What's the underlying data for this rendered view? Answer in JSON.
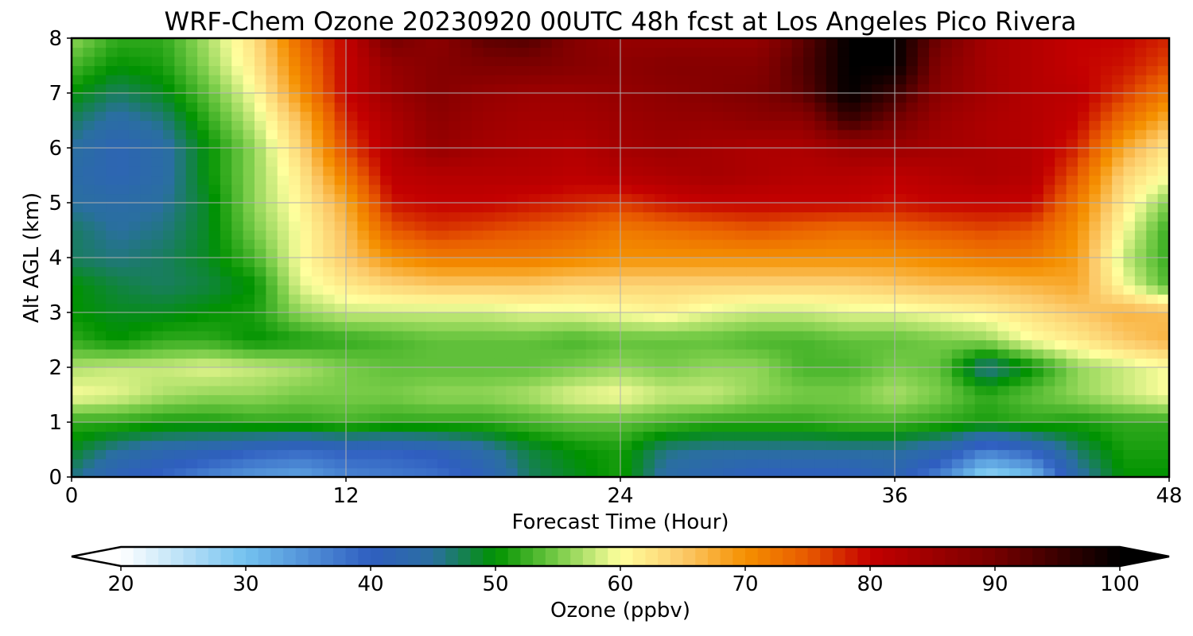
{
  "chart_data": {
    "type": "heatmap",
    "title": "WRF-Chem Ozone  20230920 00UTC 48h fcst at Los Angeles Pico Rivera",
    "xlabel": "Forecast Time (Hour)",
    "ylabel": "Alt AGL (km)",
    "xlim": [
      0,
      48
    ],
    "ylim": [
      0,
      8
    ],
    "x_ticks": [
      0,
      12,
      24,
      36,
      48
    ],
    "y_ticks": [
      0,
      1,
      2,
      3,
      4,
      5,
      6,
      7,
      8
    ],
    "grid": true,
    "x": [
      0,
      2,
      4,
      6,
      8,
      10,
      12,
      14,
      16,
      18,
      20,
      22,
      24,
      26,
      28,
      30,
      32,
      34,
      36,
      38,
      40,
      42,
      44,
      46,
      48
    ],
    "y": [
      0,
      0.5,
      1,
      1.5,
      2,
      2.5,
      3,
      3.5,
      4,
      4.5,
      5,
      5.5,
      6,
      6.5,
      7,
      7.5,
      8
    ],
    "z": [
      [
        46,
        41,
        39,
        36,
        34,
        33,
        36,
        37,
        38,
        41,
        47,
        49,
        51,
        44,
        42,
        40,
        40,
        40,
        42,
        36,
        27,
        30,
        44,
        50,
        50
      ],
      [
        49,
        45,
        43,
        42,
        40,
        39,
        40,
        40,
        41,
        44,
        48,
        50,
        51,
        46,
        45,
        45,
        45,
        45,
        45,
        43,
        37,
        40,
        47,
        51,
        51
      ],
      [
        52,
        52,
        51,
        51,
        52,
        52,
        53,
        52,
        52,
        52,
        53,
        54,
        54,
        53,
        52,
        52,
        52,
        53,
        53,
        52,
        51,
        52,
        51,
        52,
        52
      ],
      [
        60,
        59,
        57,
        56,
        56,
        55,
        55,
        55,
        56,
        56,
        57,
        59,
        60,
        58,
        58,
        56,
        55,
        55,
        57,
        55,
        52,
        54,
        56,
        58,
        60
      ],
      [
        57,
        58,
        58,
        59,
        58,
        57,
        55,
        54,
        54,
        54,
        54,
        55,
        56,
        55,
        56,
        56,
        53,
        53,
        55,
        54,
        45,
        50,
        56,
        58,
        60
      ],
      [
        52,
        50,
        52,
        52,
        50,
        51,
        52,
        53,
        54,
        54,
        54,
        53,
        54,
        54,
        54,
        53,
        53,
        54,
        54,
        55,
        56,
        60,
        62,
        65,
        67
      ],
      [
        50,
        49,
        49,
        50,
        51,
        56,
        58,
        58,
        58,
        58,
        59,
        59,
        60,
        61,
        59,
        58,
        58,
        59,
        59,
        60,
        61,
        63,
        65,
        67,
        66
      ],
      [
        50,
        48,
        47,
        48,
        50,
        59,
        62,
        64,
        65,
        65,
        65,
        64,
        64,
        64,
        64,
        64,
        64,
        64,
        65,
        66,
        66,
        67,
        68,
        60,
        53
      ],
      [
        47,
        46,
        47,
        49,
        53,
        60,
        65,
        70,
        72,
        72,
        72,
        71,
        70,
        70,
        70,
        70,
        70,
        70,
        70,
        71,
        72,
        72,
        69,
        58,
        52
      ],
      [
        47,
        45,
        46,
        49,
        55,
        60,
        66,
        75,
        77,
        76,
        75,
        74,
        72,
        73,
        74,
        75,
        74,
        73,
        74,
        75,
        76,
        75,
        70,
        60,
        52
      ],
      [
        45,
        44,
        45,
        49,
        56,
        61,
        68,
        79,
        80,
        80,
        79,
        78,
        77,
        79,
        80,
        80,
        80,
        80,
        79,
        80,
        80,
        80,
        72,
        62,
        55
      ],
      [
        44,
        42,
        44,
        50,
        56,
        62,
        72,
        81,
        82,
        82,
        82,
        81,
        82,
        83,
        84,
        83,
        82,
        82,
        81,
        82,
        83,
        82,
        75,
        64,
        60
      ],
      [
        45,
        42,
        44,
        50,
        56,
        64,
        76,
        82,
        86,
        84,
        83,
        82,
        84,
        85,
        84,
        83,
        83,
        85,
        85,
        84,
        83,
        82,
        78,
        68,
        62
      ],
      [
        47,
        44,
        46,
        52,
        58,
        66,
        78,
        83,
        87,
        85,
        84,
        84,
        85,
        86,
        86,
        87,
        87,
        95,
        90,
        85,
        83,
        82,
        80,
        73,
        67
      ],
      [
        50,
        47,
        49,
        54,
        60,
        70,
        80,
        85,
        88,
        86,
        85,
        85,
        86,
        87,
        88,
        89,
        92,
        100,
        95,
        87,
        84,
        82,
        81,
        77,
        72
      ],
      [
        53,
        50,
        51,
        56,
        62,
        72,
        80,
        86,
        88,
        89,
        89,
        88,
        87,
        88,
        88,
        88,
        93,
        100,
        100,
        88,
        84,
        82,
        80,
        79,
        76
      ],
      [
        56,
        52,
        52,
        57,
        63,
        74,
        80,
        90,
        87,
        92,
        93,
        88,
        86,
        86,
        86,
        86,
        92,
        100,
        100,
        90,
        84,
        82,
        80,
        80,
        78
      ]
    ],
    "colorbar": {
      "label": "Ozone  (ppbv)",
      "min": 20,
      "max": 100,
      "ticks": [
        20,
        30,
        40,
        50,
        60,
        70,
        80,
        90,
        100
      ],
      "extend": "both"
    },
    "colormap": [
      [
        20,
        "#ffffff"
      ],
      [
        30,
        "#73c2ef"
      ],
      [
        40,
        "#2f5ec0"
      ],
      [
        45,
        "#2a6fa0"
      ],
      [
        50,
        "#009200"
      ],
      [
        55,
        "#78cc48"
      ],
      [
        60,
        "#ffff9e"
      ],
      [
        65,
        "#fcca6a"
      ],
      [
        70,
        "#f59000"
      ],
      [
        75,
        "#e85a00"
      ],
      [
        80,
        "#c40000"
      ],
      [
        90,
        "#760000"
      ],
      [
        100,
        "#000000"
      ]
    ]
  }
}
